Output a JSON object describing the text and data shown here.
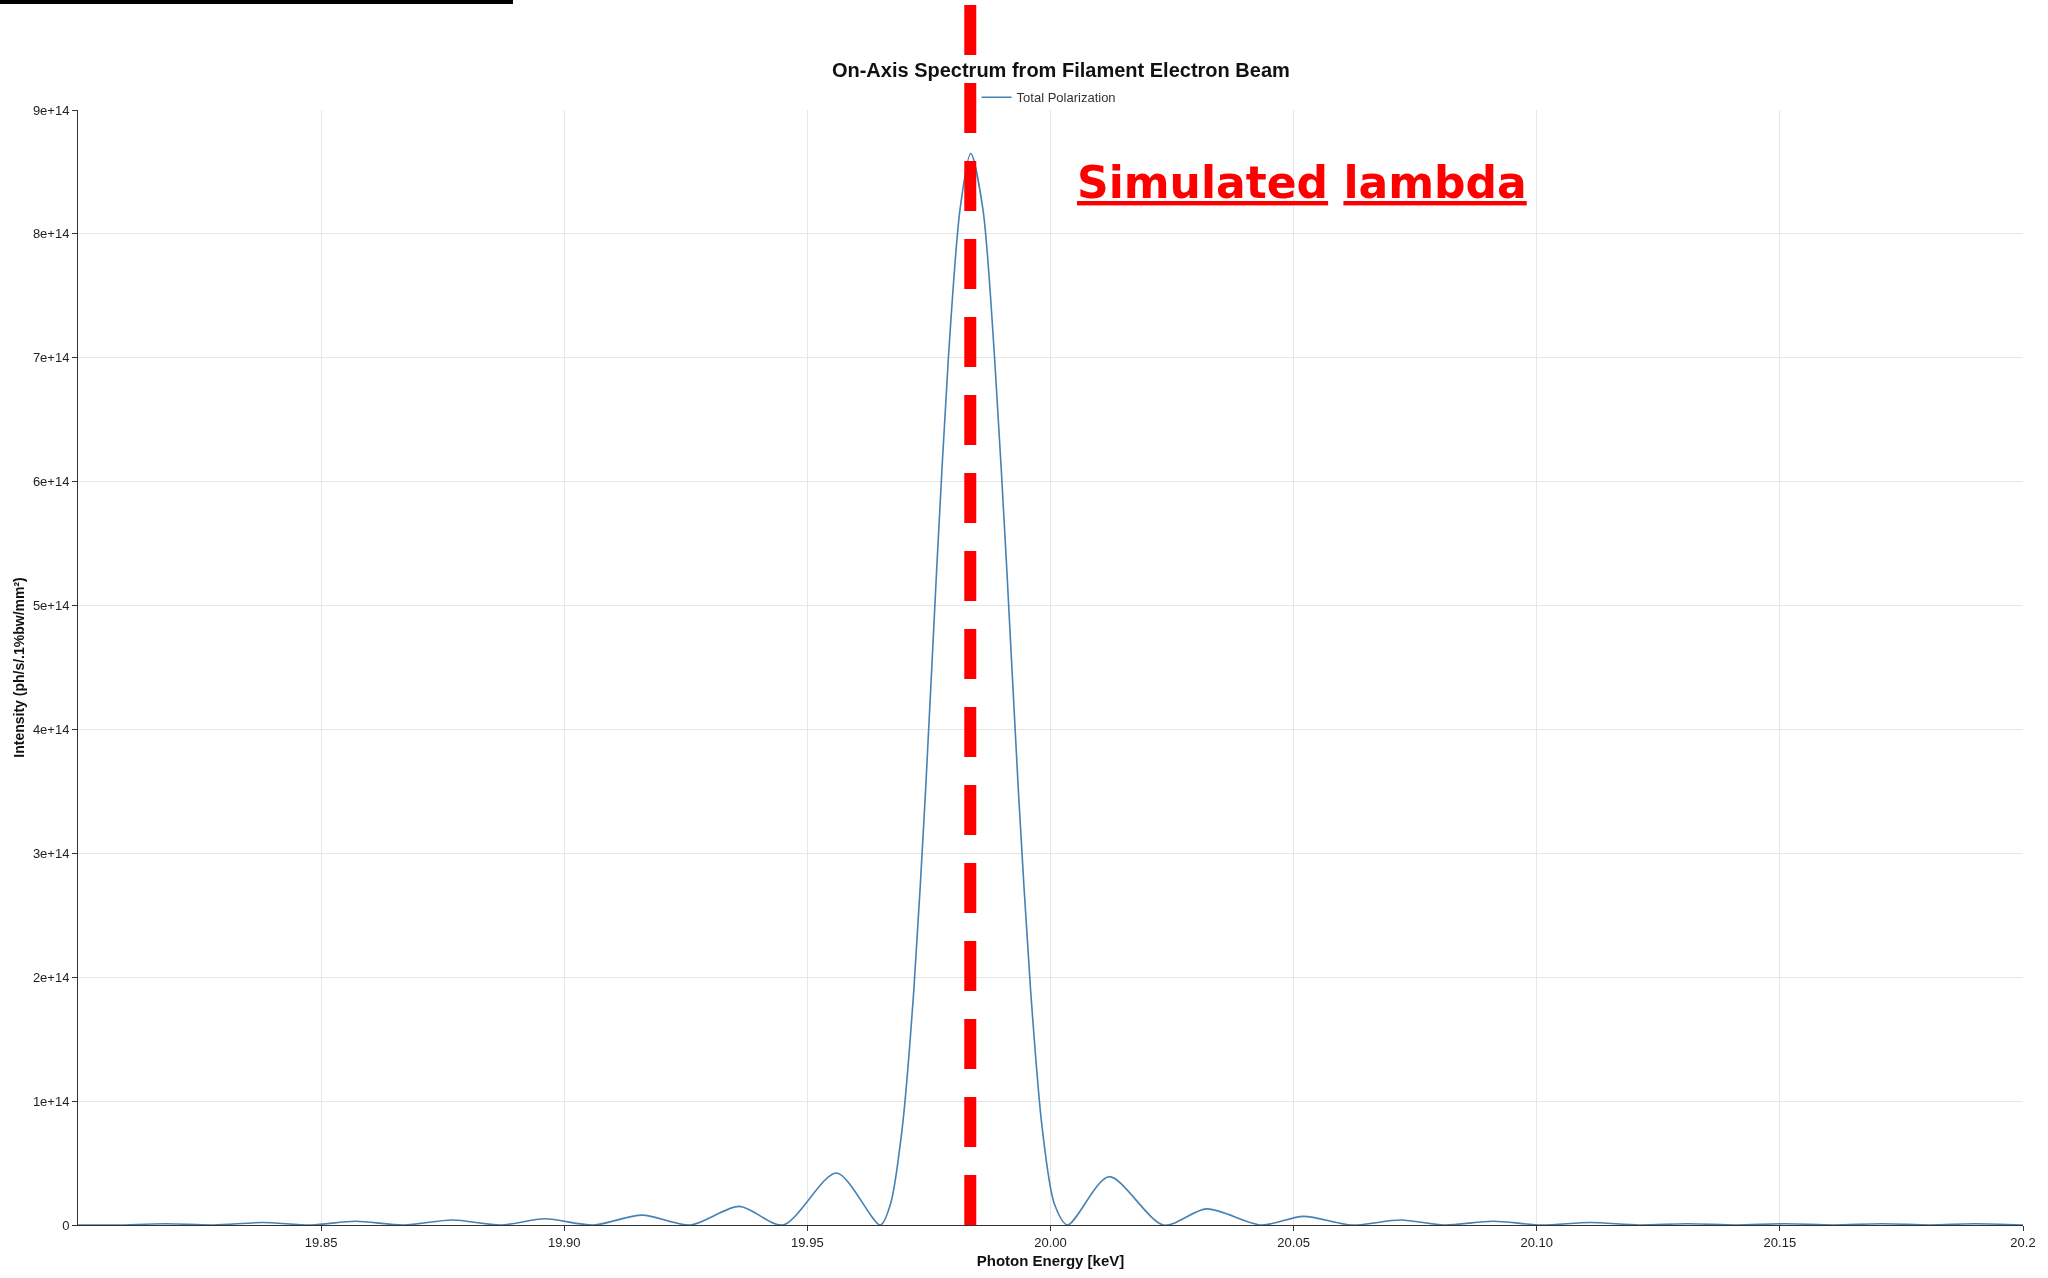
{
  "chart_data": {
    "type": "line",
    "title": "On-Axis Spectrum from Filament Electron Beam",
    "xlabel": "Photon Energy [keV]",
    "ylabel": "Intensity (ph/s/.1%bw/mm²)",
    "series": [
      {
        "name": "Total Polarization",
        "color": "#4682b4",
        "x": [
          19.8,
          19.808,
          19.818,
          19.828,
          19.838,
          19.848,
          19.857,
          19.867,
          19.877,
          19.887,
          19.896,
          19.906,
          19.916,
          19.926,
          19.936,
          19.945,
          19.956,
          19.965,
          19.9671,
          19.9695,
          19.9719,
          19.9743,
          19.9766,
          19.979,
          19.9814,
          19.9836,
          19.9861,
          19.9885,
          19.991,
          19.9934,
          19.9959,
          19.9983,
          20.0008,
          20.0035,
          20.012,
          20.0232,
          20.0321,
          20.0434,
          20.052,
          20.062,
          20.072,
          20.081,
          20.091,
          20.101,
          20.111,
          20.121,
          20.131,
          20.141,
          20.151,
          20.161,
          20.171,
          20.181,
          20.19,
          20.2
        ],
        "values": [
          0,
          0,
          1000000000000.0,
          0,
          2000000000000.0,
          0,
          3000000000000.0,
          0,
          4000000000000.0,
          0,
          5000000000000.0,
          0,
          8000000000000.0,
          0,
          15000000000000.0,
          0,
          42000000000000.0,
          0,
          17000000000000.0,
          78000000000000.0,
          190000000000000.0,
          350000000000000.0,
          530000000000000.0,
          700000000000000.0,
          820000000000000.0,
          865000000000000.0,
          820000000000000.0,
          700000000000000.0,
          530000000000000.0,
          350000000000000.0,
          190000000000000.0,
          78000000000000.0,
          17000000000000.0,
          0,
          39000000000000.0,
          0,
          13000000000000.0,
          0,
          7000000000000.0,
          0,
          4000000000000.0,
          0,
          3000000000000.0,
          0,
          2000000000000.0,
          0,
          1000000000000.0,
          0,
          1000000000000.0,
          0,
          1000000000000.0,
          0,
          1000000000000.0,
          0
        ]
      }
    ],
    "xlim": [
      19.8,
      20.2
    ],
    "xticks": [
      19.85,
      {
        "value": 19.9,
        "label": "19.90"
      },
      19.95,
      {
        "value": 20,
        "label": "20.00"
      },
      20.05,
      {
        "value": 20.1,
        "label": "20.10"
      },
      20.15,
      20.2
    ],
    "ylim": [
      0,
      900000000000000.0
    ],
    "yticks": [
      0,
      {
        "value": 100000000000000.0,
        "label": "1e+14"
      },
      {
        "value": 200000000000000.0,
        "label": "2e+14"
      },
      {
        "value": 300000000000000.0,
        "label": "3e+14"
      },
      {
        "value": 400000000000000.0,
        "label": "4e+14"
      },
      {
        "value": 500000000000000.0,
        "label": "5e+14"
      },
      {
        "value": 600000000000000.0,
        "label": "6e+14"
      },
      {
        "value": 700000000000000.0,
        "label": "7e+14"
      },
      {
        "value": 800000000000000.0,
        "label": "8e+14"
      },
      {
        "value": 900000000000000.0,
        "label": "9e+14"
      }
    ],
    "ref_lines": [
      {
        "axis": "x",
        "value": 19.9835,
        "label": "Simulated lambda",
        "color": "#ff0000",
        "line_style": "dashed"
      }
    ],
    "grid": true,
    "legend": "top",
    "marker": "none",
    "line_style": "solid"
  }
}
